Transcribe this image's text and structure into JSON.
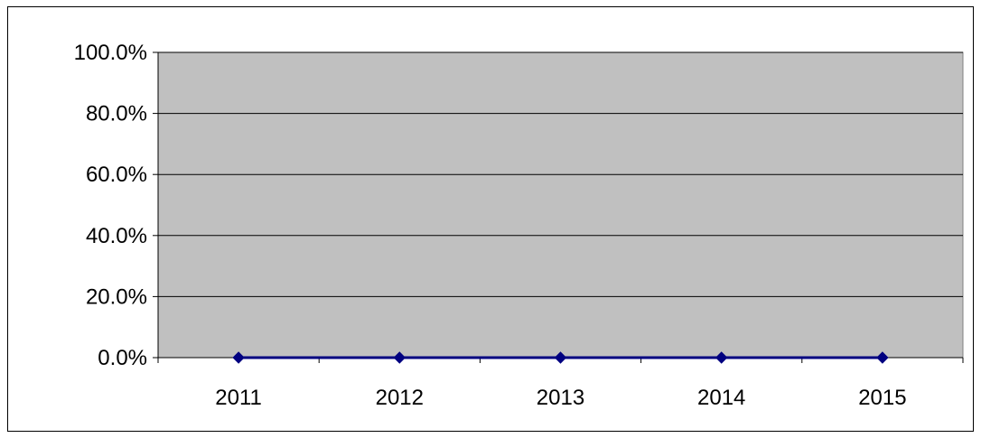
{
  "chart_data": {
    "type": "line",
    "title": "",
    "xlabel": "",
    "ylabel": "",
    "categories": [
      "2011",
      "2012",
      "2013",
      "2014",
      "2015"
    ],
    "series": [
      {
        "values": [
          0.0,
          0.0,
          0.0,
          0.0,
          0.0
        ],
        "color": "#000080"
      }
    ],
    "ylim": [
      0,
      100
    ],
    "yticks": [
      0,
      20,
      40,
      60,
      80,
      100
    ],
    "ytick_labels": [
      "0.0%",
      "20.0%",
      "40.0%",
      "60.0%",
      "80.0%",
      "100.0%"
    ],
    "grid": true,
    "legend": "none",
    "plot_background": "#c0c0c0"
  }
}
